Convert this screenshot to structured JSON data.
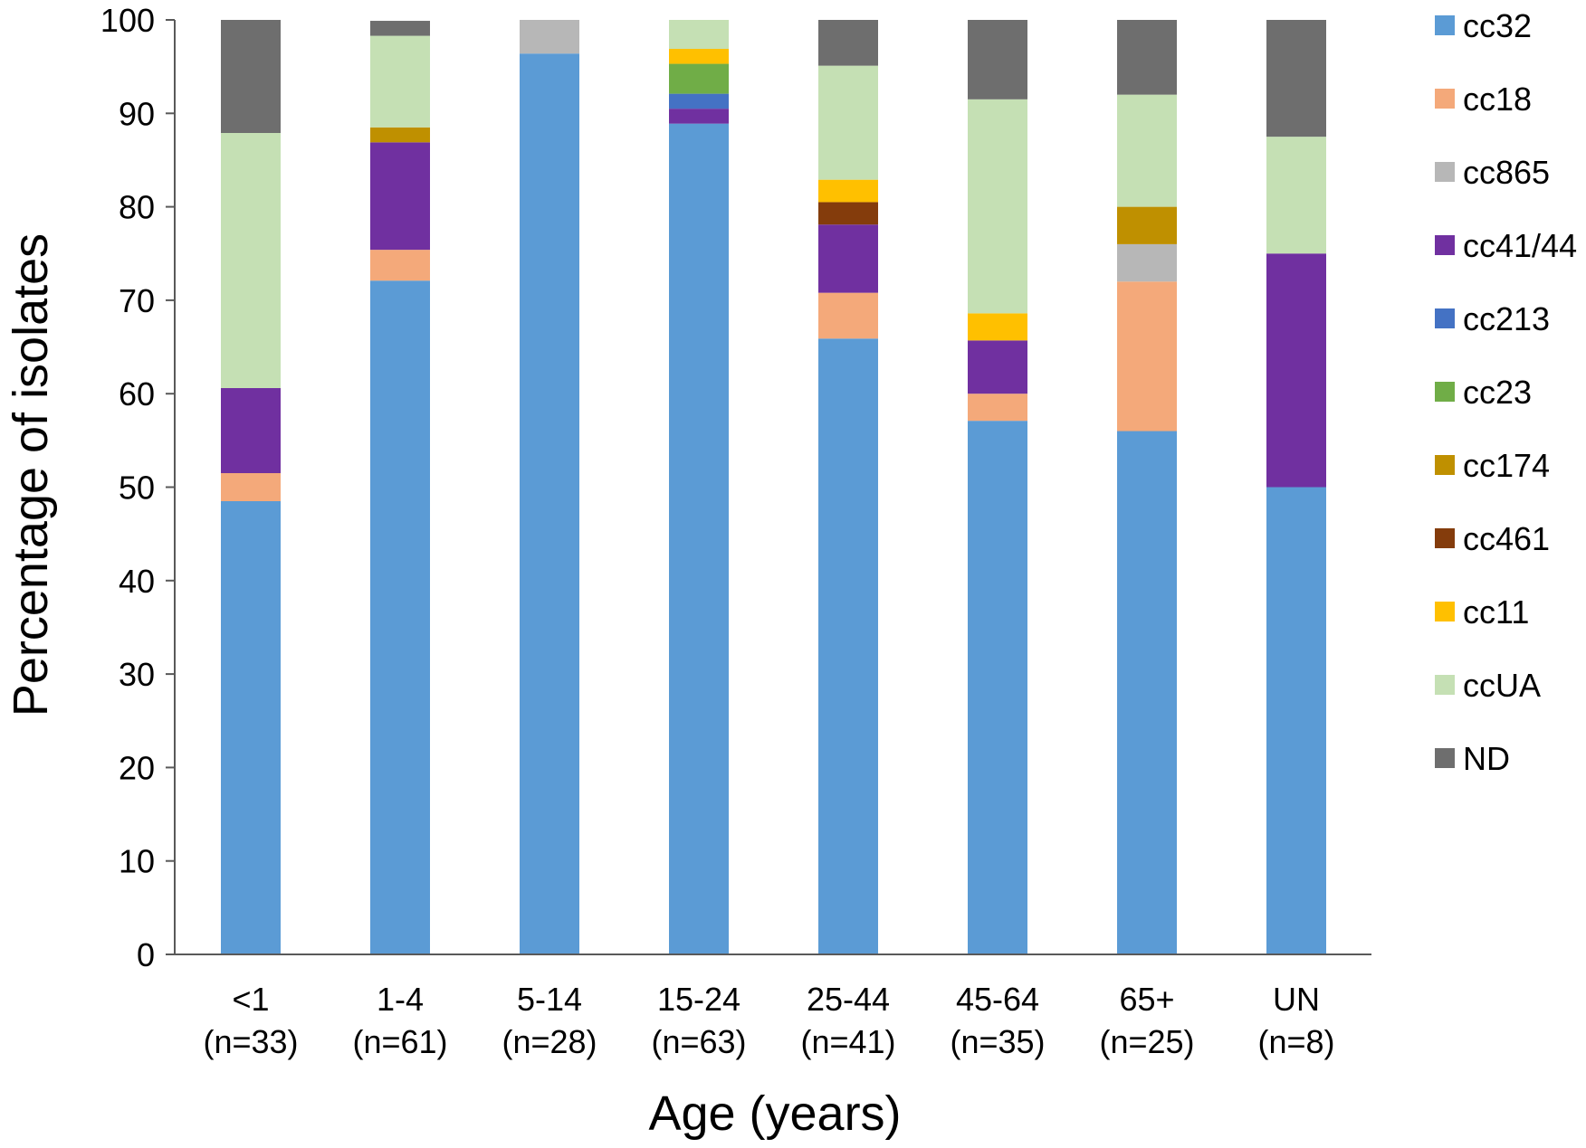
{
  "chart_data": {
    "type": "bar",
    "stacked": true,
    "title": "",
    "xlabel": "Age (years)",
    "ylabel": "Percentage of isolates",
    "ylim": [
      0,
      100
    ],
    "yticks": [
      "0",
      "10",
      "20",
      "30",
      "40",
      "50",
      "60",
      "70",
      "80",
      "90",
      "100"
    ],
    "grid": false,
    "legend_position": "right",
    "categories": [
      {
        "name": "<1",
        "n": "(n=33)"
      },
      {
        "name": "1-4",
        "n": "(n=61)"
      },
      {
        "name": "5-14",
        "n": "(n=28)"
      },
      {
        "name": "15-24",
        "n": "(n=63)"
      },
      {
        "name": "25-44",
        "n": "(n=41)"
      },
      {
        "name": "45-64",
        "n": "(n=35)"
      },
      {
        "name": "65+",
        "n": "(n=25)"
      },
      {
        "name": "UN",
        "n": "(n=8)"
      }
    ],
    "series": [
      {
        "name": "cc32",
        "color": "#5b9bd5",
        "values": [
          48.5,
          72.1,
          96.4,
          88.9,
          65.9,
          57.1,
          56.0,
          50.0
        ]
      },
      {
        "name": "cc18",
        "color": "#f4a97a",
        "values": [
          3.0,
          3.3,
          0,
          0,
          4.9,
          2.9,
          16.0,
          0
        ]
      },
      {
        "name": "cc865",
        "color": "#b7b7b7",
        "values": [
          0,
          0,
          3.6,
          0,
          0,
          0,
          4.0,
          0
        ]
      },
      {
        "name": "cc41/44",
        "color": "#7030a0",
        "values": [
          9.1,
          11.5,
          0,
          1.6,
          7.3,
          5.7,
          0,
          25.0
        ]
      },
      {
        "name": "cc213",
        "color": "#4472c4",
        "values": [
          0,
          0,
          0,
          1.6,
          0,
          0,
          0,
          0
        ]
      },
      {
        "name": "cc23",
        "color": "#70ad47",
        "values": [
          0,
          0,
          0,
          3.2,
          0,
          0,
          0,
          0
        ]
      },
      {
        "name": "cc174",
        "color": "#bf9000",
        "values": [
          0,
          1.6,
          0,
          0,
          0,
          0,
          4.0,
          0
        ]
      },
      {
        "name": "cc461",
        "color": "#843c0c",
        "values": [
          0,
          0,
          0,
          0,
          2.4,
          0,
          0,
          0
        ]
      },
      {
        "name": "cc11",
        "color": "#ffc000",
        "values": [
          0,
          0,
          0,
          1.6,
          2.4,
          2.9,
          0,
          0
        ]
      },
      {
        "name": "ccUA",
        "color": "#c5e0b4",
        "values": [
          27.3,
          9.8,
          0,
          3.2,
          12.2,
          22.9,
          12.0,
          12.5
        ]
      },
      {
        "name": "ND",
        "color": "#6e6e6e",
        "values": [
          12.1,
          1.6,
          0,
          0,
          4.9,
          8.6,
          8.0,
          12.5
        ]
      }
    ]
  }
}
